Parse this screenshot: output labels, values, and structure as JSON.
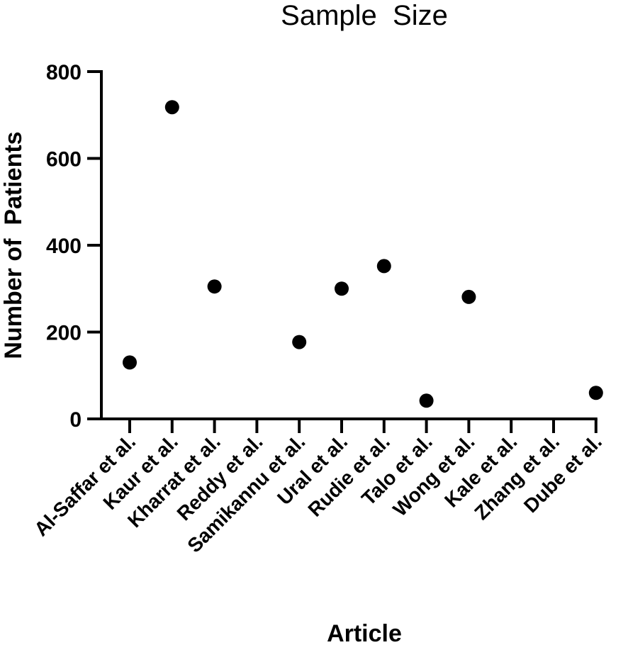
{
  "chart_data": {
    "type": "scatter",
    "title": "Sample  Size",
    "xlabel": "Article",
    "ylabel": "Number of  Patients",
    "ylim": [
      0,
      800
    ],
    "yticks": [
      0,
      200,
      400,
      600,
      800
    ],
    "grid": false,
    "categories": [
      "Al-Saffar et al.",
      "Kaur et al.",
      "Kharrat et al.",
      "Reddy et al.",
      "Samikannu et al.",
      "Ural et al.",
      "Rudie et al.",
      "Talo et al.",
      "Wong et al.",
      "Kale et al.",
      "Zhang et al.",
      "Dube et al."
    ],
    "values": [
      130,
      718,
      305,
      null,
      177,
      300,
      352,
      42,
      281,
      null,
      null,
      60
    ]
  }
}
